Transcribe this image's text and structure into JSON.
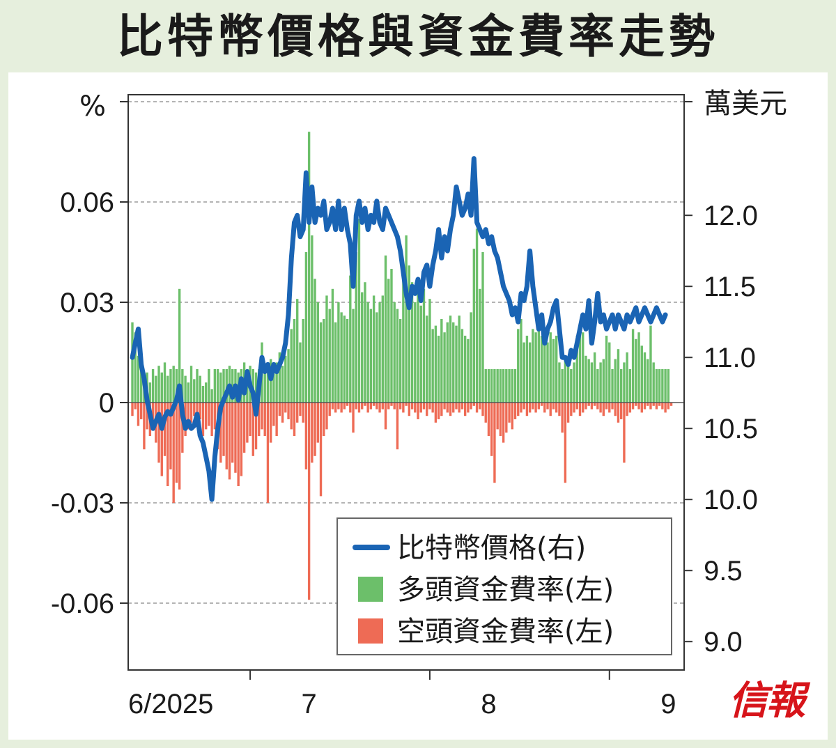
{
  "title": "比特幣價格與資金費率走勢",
  "brand": "信報",
  "chart_data": {
    "type": "bar+line",
    "left_axis": {
      "unit": "%",
      "ylim": [
        -0.08,
        0.09
      ],
      "ticks": [
        "0.06",
        "0.03",
        "0",
        "-0.03",
        "-0.06"
      ],
      "tick_values": [
        0.06,
        0.03,
        0,
        -0.03,
        -0.06
      ]
    },
    "right_axis": {
      "unit": "萬美元",
      "ylim": [
        8.8,
        12.8
      ],
      "ticks": [
        "12.0",
        "11.5",
        "11.0",
        "10.5",
        "10.0",
        "9.5",
        "9.0"
      ],
      "tick_values": [
        12.0,
        11.5,
        11.0,
        10.5,
        10.0,
        9.5,
        9.0
      ]
    },
    "x_axis": {
      "labels": [
        "6/2025",
        "7",
        "8",
        "9"
      ],
      "label_index": [
        0,
        60,
        121,
        182
      ],
      "n_points": 186
    },
    "grid": "horizontal dashed",
    "legend": {
      "placement": "bottom-right",
      "items": [
        {
          "label": "比特幣價格(右)",
          "color": "#1a64b4",
          "kind": "line"
        },
        {
          "label": "多頭資金費率(左)",
          "color": "#6cbf6a",
          "kind": "bar"
        },
        {
          "label": "空頭資金費率(左)",
          "color": "#ee6b55",
          "kind": "bar"
        }
      ]
    },
    "series": [
      {
        "name": "比特幣價格(右)",
        "axis": "right",
        "color": "#1a64b4",
        "values": [
          11.0,
          11.1,
          11.2,
          10.95,
          10.85,
          10.7,
          10.6,
          10.5,
          10.55,
          10.6,
          10.5,
          10.58,
          10.62,
          10.6,
          10.65,
          10.7,
          10.8,
          10.6,
          10.5,
          10.55,
          10.5,
          10.52,
          10.6,
          10.45,
          10.4,
          10.3,
          10.2,
          10.0,
          10.3,
          10.5,
          10.65,
          10.7,
          10.75,
          10.8,
          10.72,
          10.8,
          10.7,
          10.85,
          10.75,
          10.9,
          10.8,
          10.75,
          10.6,
          10.8,
          11.0,
          10.9,
          10.95,
          10.85,
          10.95,
          10.9,
          10.95,
          11.0,
          11.1,
          11.3,
          11.7,
          11.95,
          12.0,
          11.85,
          11.9,
          12.3,
          11.95,
          12.2,
          11.95,
          12.05,
          12.0,
          12.1,
          11.9,
          11.95,
          12.05,
          11.9,
          12.1,
          11.9,
          12.05,
          11.9,
          11.8,
          11.5,
          12.0,
          12.1,
          11.95,
          12.05,
          11.9,
          12.0,
          11.95,
          12.1,
          11.95,
          11.9,
          12.05,
          12.0,
          11.95,
          11.9,
          11.85,
          11.75,
          11.6,
          11.45,
          11.35,
          11.5,
          11.45,
          11.55,
          11.4,
          11.6,
          11.65,
          11.5,
          11.65,
          11.75,
          11.9,
          11.7,
          11.85,
          11.75,
          11.9,
          12.0,
          12.2,
          12.1,
          12.0,
          12.05,
          12.15,
          12.0,
          12.4,
          11.95,
          11.9,
          11.85,
          11.9,
          11.8,
          11.85,
          11.75,
          11.7,
          11.6,
          11.5,
          11.45,
          11.4,
          11.3,
          11.35,
          11.25,
          11.45,
          11.4,
          11.5,
          11.75,
          11.5,
          11.35,
          11.2,
          11.3,
          11.1,
          11.2,
          11.25,
          11.35,
          11.4,
          11.2,
          11.0,
          11.0,
          10.95,
          11.05,
          11.0,
          11.1,
          11.2,
          11.3,
          11.2,
          11.4,
          11.1,
          11.25,
          11.45,
          11.25,
          11.3,
          11.2,
          11.25,
          11.3,
          11.2,
          11.3,
          11.25,
          11.2,
          11.3,
          11.25,
          11.3,
          11.35,
          11.25,
          11.3,
          11.35,
          11.3,
          11.25,
          11.3,
          11.35,
          11.3,
          11.25,
          11.3
        ]
      },
      {
        "name": "多頭資金費率(左)",
        "axis": "left",
        "color": "#6cbf6a",
        "values": [
          0.024,
          0.021,
          0.014,
          0.012,
          0.008,
          0.009,
          0.006,
          0.01,
          0.008,
          0.011,
          0.009,
          0.012,
          0.008,
          0.01,
          0.011,
          0.01,
          0.034,
          0.01,
          0.008,
          0.006,
          0.011,
          0.007,
          0.01,
          0.008,
          0.005,
          0.006,
          0.01,
          0.004,
          0.01,
          0.01,
          0.009,
          0.01,
          0.01,
          0.011,
          0.01,
          0.01,
          0.009,
          0.01,
          0.012,
          0.01,
          0.011,
          0.01,
          0.009,
          0.01,
          0.018,
          0.01,
          0.011,
          0.013,
          0.01,
          0.012,
          0.015,
          0.011,
          0.014,
          0.016,
          0.022,
          0.025,
          0.031,
          0.018,
          0.025,
          0.045,
          0.081,
          0.05,
          0.037,
          0.03,
          0.024,
          0.025,
          0.032,
          0.028,
          0.034,
          0.024,
          0.03,
          0.027,
          0.026,
          0.025,
          0.038,
          0.028,
          0.045,
          0.055,
          0.033,
          0.036,
          0.03,
          0.028,
          0.032,
          0.027,
          0.03,
          0.032,
          0.044,
          0.037,
          0.04,
          0.03,
          0.028,
          0.025,
          0.04,
          0.05,
          0.041,
          0.036,
          0.03,
          0.034,
          0.029,
          0.034,
          0.026,
          0.031,
          0.022,
          0.023,
          0.02,
          0.025,
          0.021,
          0.024,
          0.026,
          0.024,
          0.023,
          0.026,
          0.022,
          0.02,
          0.019,
          0.027,
          0.046,
          0.052,
          0.034,
          0.045,
          0.01,
          0.01,
          0.01,
          0.01,
          0.01,
          0.01,
          0.01,
          0.01,
          0.01,
          0.01,
          0.01,
          0.022,
          0.025,
          0.018,
          0.02,
          0.018,
          0.022,
          0.021,
          0.023,
          0.02,
          0.022,
          0.018,
          0.021,
          0.019,
          0.02,
          0.012,
          0.01,
          0.014,
          0.011,
          0.01,
          0.012,
          0.02,
          0.022,
          0.021,
          0.014,
          0.013,
          0.012,
          0.015,
          0.01,
          0.012,
          0.013,
          0.02,
          0.018,
          0.01,
          0.013,
          0.016,
          0.01,
          0.012,
          0.015,
          0.01,
          0.022,
          0.019,
          0.021,
          0.017,
          0.015,
          0.013,
          0.023,
          0.012,
          0.01,
          0.01,
          0.01,
          0.01,
          0.01
        ]
      },
      {
        "name": "空頭資金費率(左)",
        "axis": "left",
        "color": "#ee6b55",
        "values": [
          -0.004,
          -0.002,
          -0.007,
          -0.005,
          -0.014,
          -0.008,
          -0.01,
          -0.006,
          -0.012,
          -0.018,
          -0.022,
          -0.016,
          -0.025,
          -0.02,
          -0.03,
          -0.024,
          -0.026,
          -0.015,
          -0.01,
          -0.008,
          -0.006,
          -0.004,
          -0.003,
          -0.005,
          -0.01,
          -0.008,
          -0.007,
          -0.01,
          -0.008,
          -0.014,
          -0.018,
          -0.016,
          -0.02,
          -0.023,
          -0.018,
          -0.021,
          -0.025,
          -0.022,
          -0.015,
          -0.012,
          -0.01,
          -0.016,
          -0.014,
          -0.01,
          -0.008,
          -0.01,
          -0.03,
          -0.012,
          -0.007,
          -0.01,
          -0.004,
          -0.006,
          -0.003,
          -0.005,
          -0.008,
          -0.01,
          -0.006,
          -0.004,
          -0.006,
          -0.02,
          -0.059,
          -0.018,
          -0.016,
          -0.012,
          -0.028,
          -0.01,
          -0.008,
          -0.004,
          -0.002,
          -0.003,
          -0.002,
          -0.003,
          -0.002,
          -0.001,
          -0.003,
          -0.009,
          -0.002,
          -0.003,
          -0.002,
          -0.001,
          -0.003,
          -0.002,
          -0.001,
          -0.002,
          -0.003,
          -0.002,
          -0.008,
          -0.002,
          -0.001,
          -0.002,
          -0.014,
          -0.002,
          -0.003,
          -0.001,
          -0.004,
          -0.002,
          -0.003,
          -0.005,
          -0.003,
          -0.002,
          -0.004,
          -0.002,
          -0.003,
          -0.006,
          -0.005,
          -0.004,
          -0.002,
          -0.003,
          -0.004,
          -0.003,
          -0.002,
          -0.003,
          -0.002,
          -0.004,
          -0.003,
          -0.002,
          -0.001,
          -0.003,
          -0.002,
          -0.004,
          -0.006,
          -0.01,
          -0.016,
          -0.024,
          -0.008,
          -0.01,
          -0.012,
          -0.009,
          -0.006,
          -0.008,
          -0.005,
          -0.004,
          -0.003,
          -0.002,
          -0.004,
          -0.003,
          -0.002,
          -0.003,
          -0.002,
          -0.001,
          -0.003,
          -0.002,
          -0.004,
          -0.002,
          -0.003,
          -0.004,
          -0.009,
          -0.024,
          -0.006,
          -0.004,
          -0.003,
          -0.002,
          -0.004,
          -0.003,
          -0.002,
          -0.001,
          -0.002,
          -0.001,
          -0.002,
          -0.003,
          -0.004,
          -0.002,
          -0.003,
          -0.002,
          -0.004,
          -0.006,
          -0.005,
          -0.018,
          -0.004,
          -0.003,
          -0.002,
          -0.001,
          -0.002,
          -0.003,
          -0.002,
          -0.001,
          -0.002,
          -0.001,
          -0.002,
          -0.001,
          -0.002,
          -0.003,
          -0.002,
          -0.001
        ]
      }
    ]
  }
}
